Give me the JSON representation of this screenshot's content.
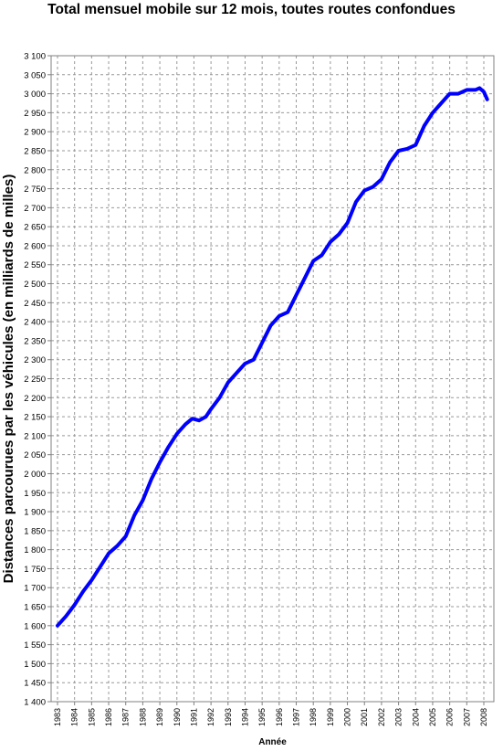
{
  "chart_data": {
    "type": "line",
    "title": "Total mensuel mobile sur 12 mois, toutes routes confondues",
    "xlabel": "Année",
    "ylabel": "Distances parcourues par les véhicules (en milliards de milles)",
    "ylim": [
      1400,
      3100
    ],
    "y_ticks": [
      "1 400",
      "1 450",
      "1 500",
      "1 550",
      "1 600",
      "1 650",
      "1 700",
      "1 750",
      "1 800",
      "1 850",
      "1 900",
      "1 950",
      "2 000",
      "2 050",
      "2 100",
      "2 150",
      "2 200",
      "2 250",
      "2 300",
      "2 350",
      "2 400",
      "2 450",
      "2 500",
      "2 550",
      "2 600",
      "2 650",
      "2 700",
      "2 750",
      "2 800",
      "2 850",
      "2 900",
      "2 950",
      "3 000",
      "3 050",
      "3 100"
    ],
    "x_ticks": [
      "1983",
      "1984",
      "1985",
      "1986",
      "1987",
      "1988",
      "1989",
      "1990",
      "1991",
      "1992",
      "1993",
      "1994",
      "1995",
      "1996",
      "1997",
      "1998",
      "1999",
      "2000",
      "2001",
      "2002",
      "2003",
      "2004",
      "2005",
      "2006",
      "2007",
      "2008"
    ],
    "grid": true,
    "series": [
      {
        "color": "#0000ff",
        "x": [
          1983.0,
          1983.5,
          1984.0,
          1984.5,
          1985.0,
          1985.5,
          1986.0,
          1986.5,
          1987.0,
          1987.5,
          1988.0,
          1988.5,
          1989.0,
          1989.5,
          1990.0,
          1990.5,
          1990.9,
          1991.3,
          1991.7,
          1992.0,
          1992.5,
          1993.0,
          1993.5,
          1994.0,
          1994.5,
          1995.0,
          1995.5,
          1996.0,
          1996.5,
          1997.0,
          1997.5,
          1998.0,
          1998.5,
          1999.0,
          1999.5,
          2000.0,
          2000.5,
          2001.0,
          2001.5,
          2002.0,
          2002.5,
          2003.0,
          2003.5,
          2004.0,
          2004.5,
          2005.0,
          2005.5,
          2006.0,
          2006.5,
          2007.0,
          2007.5,
          2007.75,
          2008.0,
          2008.2
        ],
        "y": [
          1600,
          1625,
          1655,
          1690,
          1720,
          1755,
          1790,
          1810,
          1835,
          1890,
          1930,
          1985,
          2030,
          2070,
          2105,
          2130,
          2145,
          2140,
          2150,
          2170,
          2200,
          2240,
          2265,
          2290,
          2300,
          2345,
          2390,
          2415,
          2425,
          2470,
          2515,
          2560,
          2575,
          2610,
          2630,
          2660,
          2715,
          2745,
          2755,
          2775,
          2820,
          2850,
          2855,
          2865,
          2915,
          2950,
          2975,
          3000,
          3000,
          3010,
          3010,
          3015,
          3005,
          2985
        ]
      }
    ]
  }
}
